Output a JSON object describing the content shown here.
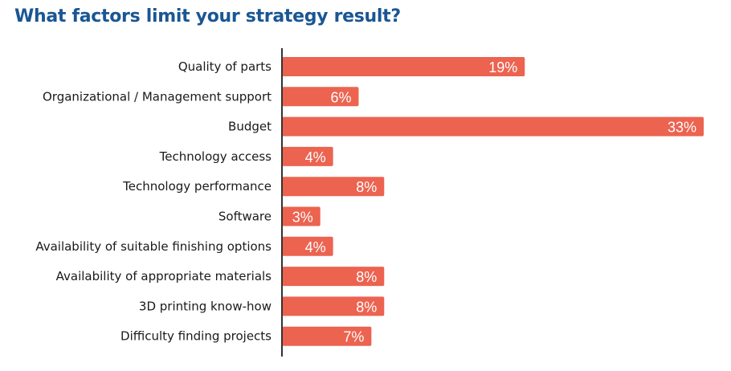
{
  "chart_data": {
    "type": "bar",
    "orientation": "horizontal",
    "title": "What factors limit your strategy result?",
    "categories": [
      "Quality of parts",
      "Organizational / Management support",
      "Budget",
      "Technology access",
      "Technology performance",
      "Software",
      "Availability of suitable finishing options",
      "Availability of appropriate materials",
      "3D printing know-how",
      "Difficulty finding projects"
    ],
    "values": [
      19,
      6,
      33,
      4,
      8,
      3,
      4,
      8,
      8,
      7
    ],
    "value_labels": [
      "19%",
      "6%",
      "33%",
      "4%",
      "8%",
      "3%",
      "4%",
      "8%",
      "8%",
      "7%"
    ],
    "xlabel": "",
    "ylabel": "",
    "xlim": [
      0,
      33
    ],
    "grid": false,
    "bar_color": "#ec6350",
    "title_color": "#1a5693"
  }
}
